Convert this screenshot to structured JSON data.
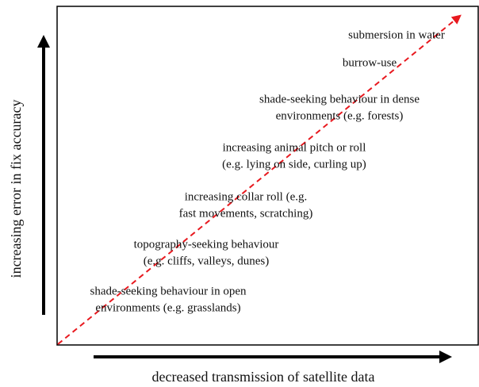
{
  "diagram": {
    "y_axis_label": "increasing error in fix accuracy",
    "x_axis_label": "decreased transmission of satellite data",
    "behaviours": [
      {
        "lines": [
          "submersion in water"
        ]
      },
      {
        "lines": [
          "burrow-use"
        ]
      },
      {
        "lines": [
          "shade-seeking behaviour in dense",
          "environments (e.g. forests)"
        ]
      },
      {
        "lines": [
          "increasing animal pitch or roll",
          "(e.g. lying on side, curling up)"
        ]
      },
      {
        "lines": [
          "increasing collar roll (e.g.",
          "fast movements, scratching)"
        ]
      },
      {
        "lines": [
          "topography-seeking behaviour",
          "(e.g. cliffs, valleys, dunes)"
        ]
      },
      {
        "lines": [
          "shade-seeking behaviour in open",
          "environments (e.g. grasslands)"
        ]
      }
    ]
  }
}
